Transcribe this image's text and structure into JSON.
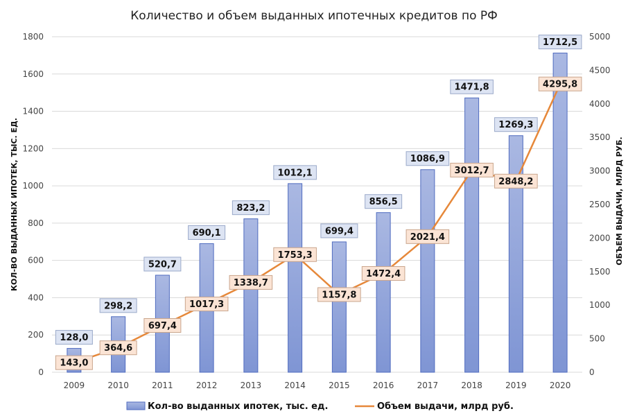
{
  "chart_data": {
    "type": "bar",
    "title": "Количество  и объем  выданных  ипотечных  кредитов  по РФ",
    "categories": [
      "2009",
      "2010",
      "2011",
      "2012",
      "2013",
      "2014",
      "2015",
      "2016",
      "2017",
      "2018",
      "2019",
      "2020"
    ],
    "series": [
      {
        "name": "Кол-во выданных ипотек, тыс. ед.",
        "type": "bar",
        "axis": "left",
        "values": [
          128.0,
          298.2,
          520.7,
          690.1,
          823.2,
          1012.1,
          699.4,
          856.5,
          1086.9,
          1471.8,
          1269.3,
          1712.5
        ],
        "labels": [
          "128,0",
          "298,2",
          "520,7",
          "690,1",
          "823,2",
          "1012,1",
          "699,4",
          "856,5",
          "1086,9",
          "1471,8",
          "1269,3",
          "1712,5"
        ]
      },
      {
        "name": "Объем выдачи, млрд руб.",
        "type": "line",
        "axis": "right",
        "values": [
          143.0,
          364.6,
          697.4,
          1017.3,
          1338.7,
          1753.3,
          1157.8,
          1472.4,
          2021.4,
          3012.7,
          2848.2,
          4295.8
        ],
        "labels": [
          "143,0",
          "364,6",
          "697,4",
          "1017,3",
          "1338,7",
          "1753,3",
          "1157,8",
          "1472,4",
          "2021,4",
          "3012,7",
          "2848,2",
          "4295,8"
        ]
      }
    ],
    "ylabel_left": "КОЛ-ВО ВЫДАННЫХ ИПОТЕК, ТЫС. ЕД.",
    "ylabel_right": "ОБЪЕМ ВЫДАЧИ, МЛРД РУБ.",
    "ylim_left": [
      0,
      1800
    ],
    "yticks_left": [
      "0",
      "200",
      "400",
      "600",
      "800",
      "1000",
      "1200",
      "1400",
      "1600",
      "1800"
    ],
    "ylim_right": [
      0,
      5000
    ],
    "yticks_right": [
      "0",
      "500",
      "1000",
      "1500",
      "2000",
      "2500",
      "3000",
      "3500",
      "4000",
      "4500",
      "5000"
    ],
    "grid": true,
    "legend_position": "bottom",
    "colors": {
      "bar_fill_top": "#aab8e2",
      "bar_fill_bottom": "#7f95d4",
      "bar_stroke": "#4f6bbf",
      "bar_label_bg": "#dde4f3",
      "bar_label_border": "#9aa9c9",
      "line": "#e6883a",
      "line_label_bg": "#fbe4d5",
      "line_label_border": "#c9a58c",
      "grid": "#d9d9d9"
    }
  }
}
